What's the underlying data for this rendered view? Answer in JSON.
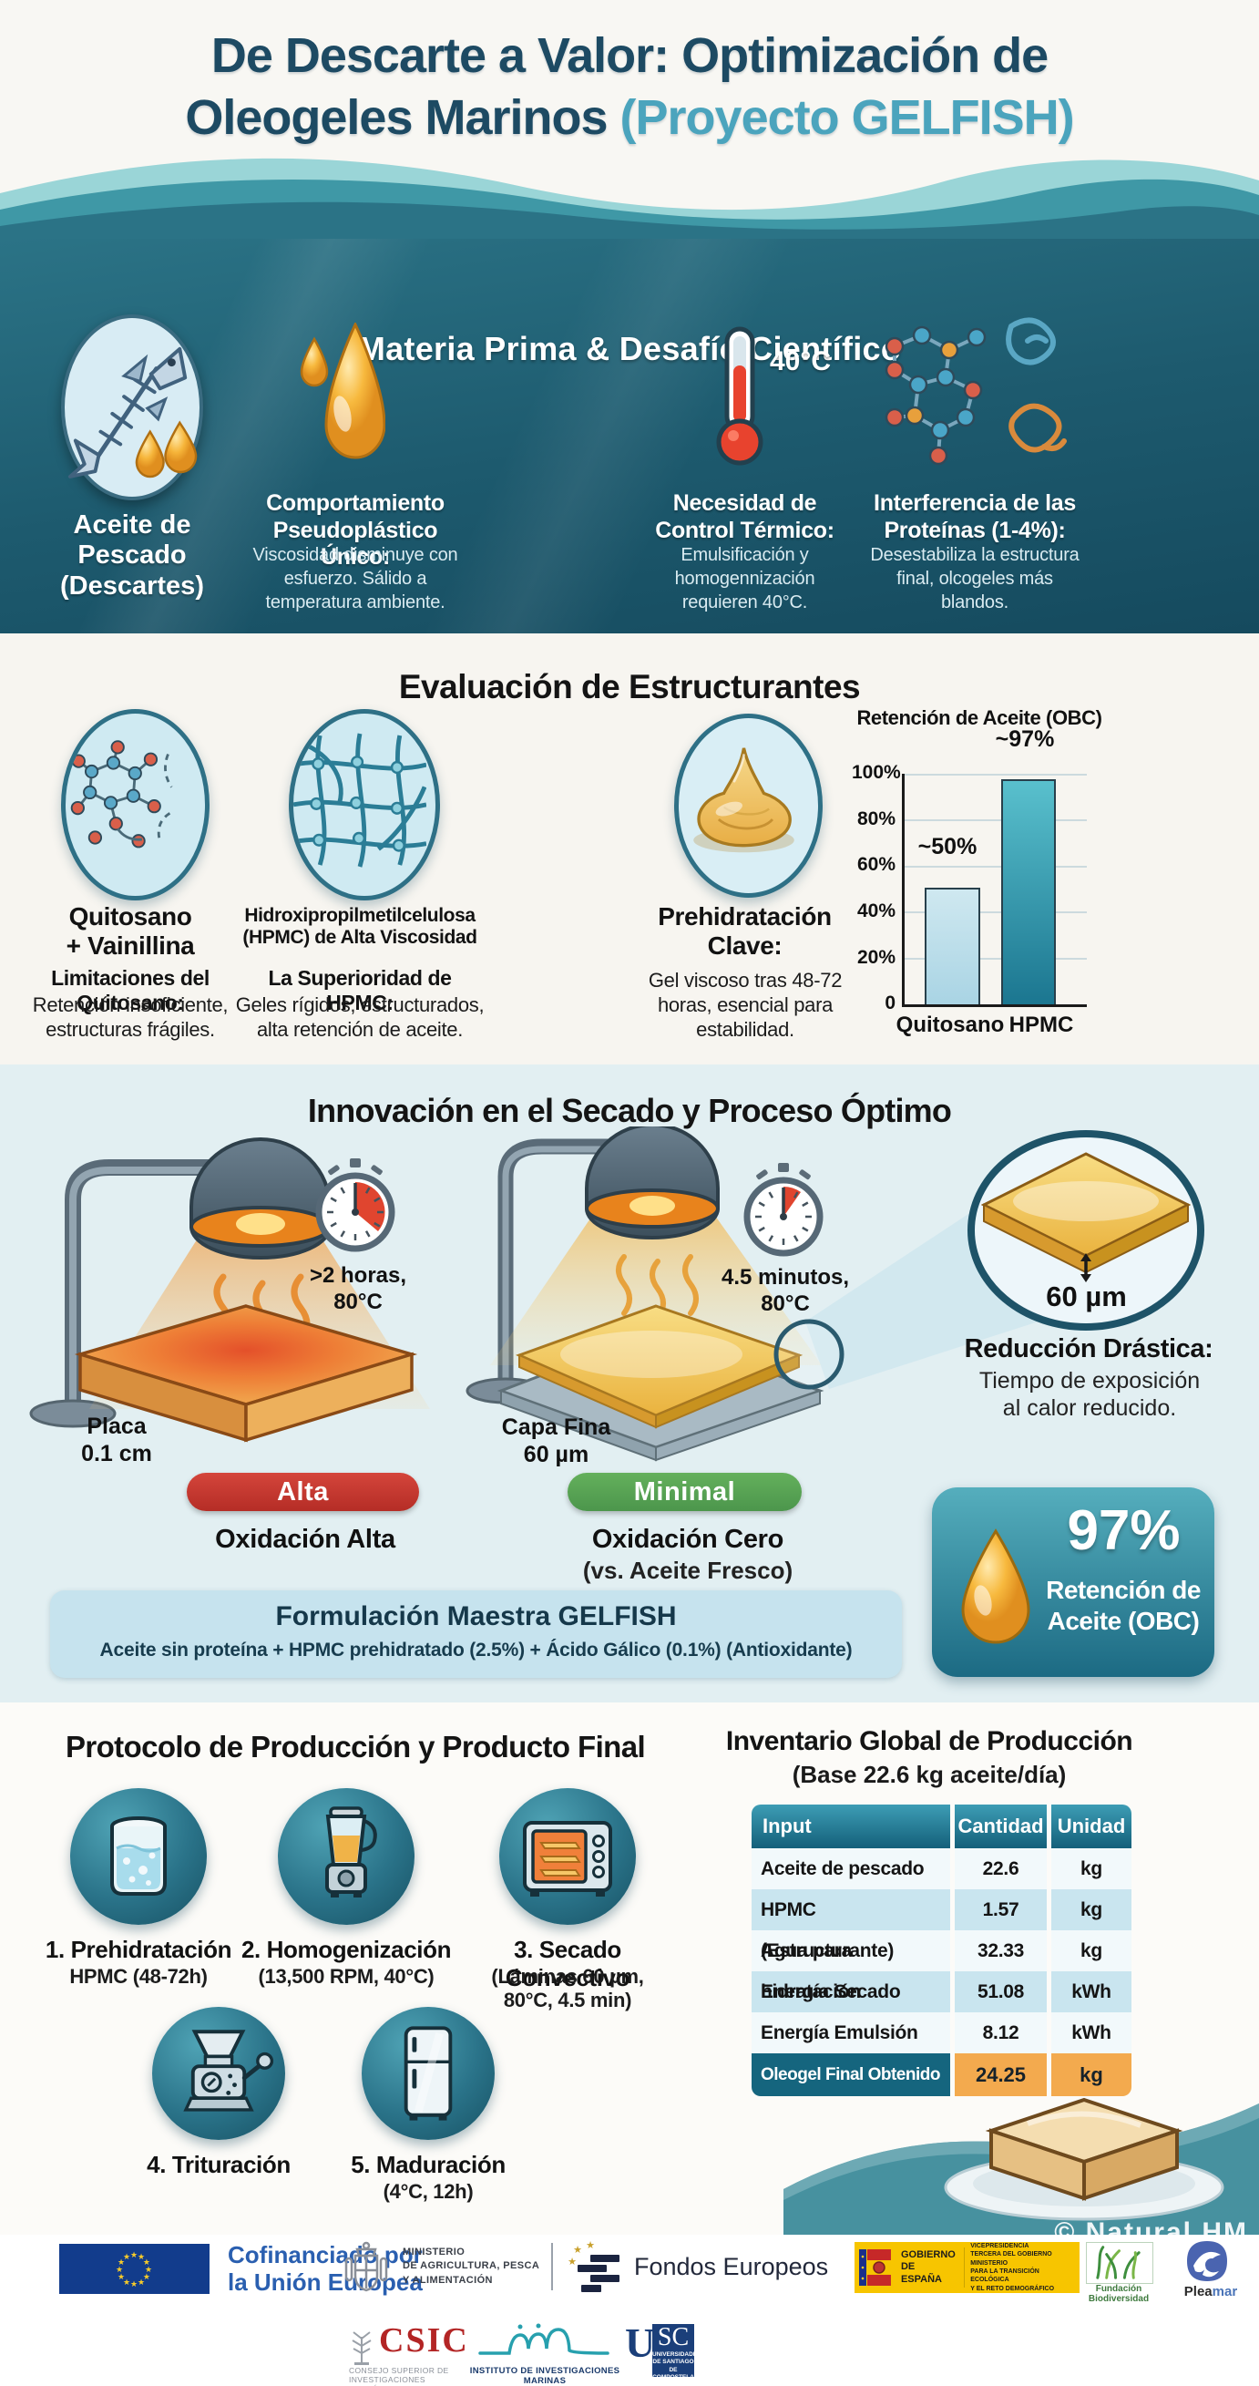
{
  "header": {
    "title_main_1": "De Descarte a Valor: Optimización de",
    "title_main_2": "Oleogeles Marinos ",
    "title_accent": "(Proyecto GELFISH)",
    "title_color": "#1d4a63",
    "accent_color": "#4ba4bd"
  },
  "materia": {
    "title": "Materia Prima & Desafío Científico",
    "items": [
      {
        "icon": "fish-skeleton-icon",
        "label": "Aceite de Pescado\n(Descartes)"
      },
      {
        "icon": "oil-drop-icon",
        "heading": "Comportamiento\nPseudoplástico Único:",
        "body": "Viscosidad disminuye con\nesfuerzo. Sálido a\ntemperatura ambiente."
      },
      {
        "icon": "thermometer-icon",
        "temp": "40°C",
        "heading": "Necesidad de\nControl Térmico:",
        "body": "Emulsificación y\nhomogennización\nrequieren 40°C."
      },
      {
        "icon": "protein-molecules-icon",
        "heading": "Interferencia de las\nProteínas (1-4%):",
        "body": "Desestabiliza la estructura\nfinal, olcogeles más\nblandos."
      }
    ]
  },
  "evaluacion": {
    "title": "Evaluación de Estructurantes",
    "items": [
      {
        "icon": "chitosan-molecule-icon",
        "name": "Quitosano\n+ Vainillina",
        "subheading": "Limitaciones del Quitosano:",
        "body": "Retención insoficiente,\nestructuras frágiles."
      },
      {
        "icon": "hpmc-network-icon",
        "name": "Hidroxipropilmetilcelulosa\n(HPMC) de Alta Viscosidad",
        "subheading": "La Superioridad de HPMC:",
        "body": "Geles rígidos, estructurados,\nalta retención de aceite."
      },
      {
        "icon": "gel-dollop-icon",
        "name": "Prehidratación\nClave:",
        "body": "Gel viscoso tras 48-72\nhoras, esencial para\nestabilidad."
      }
    ]
  },
  "chart_data": {
    "type": "bar",
    "title": "Retención de Aceite (OBC)",
    "categories": [
      "Quitosano",
      "HPMC"
    ],
    "values": [
      50,
      97
    ],
    "value_labels": [
      "~50%",
      "~97%"
    ],
    "y_ticks": [
      "100%",
      "80%",
      "60%",
      "40%",
      "20%",
      "0"
    ],
    "ylim": [
      0,
      100
    ],
    "grid": true,
    "legend": false,
    "bar_colors": [
      "#a9d4e4",
      "#1b7690"
    ]
  },
  "secado": {
    "title": "Innovación en el Secado y Proceso Óptimo",
    "old_method": {
      "timer": ">2 horas,\n80°C",
      "sample": "Placa\n0.1 cm",
      "badge": "Alta",
      "badge_color": "#c9362e",
      "result": "Oxidación Alta"
    },
    "new_method": {
      "timer": "4.5 minutos,\n80°C",
      "sample": "Capa Fina\n60 µm",
      "badge": "Minimal",
      "badge_color": "#55a355",
      "result": "Oxidación Cero",
      "result_note": "(vs. Aceite Fresco)"
    },
    "detail": {
      "thickness": "60 µm",
      "heading": "Reducción Drástica:",
      "body": "Tiempo de exposición\nal calor reducido."
    },
    "formula": {
      "title": "Formulación Maestra GELFISH",
      "body": "Aceite sin proteína + HPMC prehidratado (2.5%) + Ácido Gálico (0.1%) (Antioxidante)"
    },
    "obc_badge": {
      "value": "97%",
      "label": "Retención de\nAceite (OBC)"
    }
  },
  "protocolo": {
    "title": "Protocolo de Producción y Producto Final",
    "steps": [
      {
        "icon": "beaker-icon",
        "label": "1. Prehidratación",
        "detail": "HPMC (48-72h)"
      },
      {
        "icon": "blender-icon",
        "label": "2. Homogenización",
        "detail": "(13,500 RPM, 40°C)"
      },
      {
        "icon": "oven-icon",
        "label": "3. Secado Convectivo",
        "detail": "(Láminas 60 µm,\n80°C, 4.5 min)"
      },
      {
        "icon": "grinder-icon",
        "label": "4. Trituración",
        "detail": ""
      },
      {
        "icon": "fridge-icon",
        "label": "5. Maduración",
        "detail": "(4°C, 12h)"
      }
    ]
  },
  "inventario": {
    "title": "Inventario Global de Producción",
    "subtitle": "(Base 22.6 kg aceite/día)",
    "columns": [
      "Input",
      "Cantidad",
      "Unidad"
    ],
    "rows": [
      [
        "Aceite de pescado",
        "22.6",
        "kg"
      ],
      [
        "HPMC (Estructurante)",
        "1.57",
        "kg"
      ],
      [
        "Agua para hidratación",
        "32.33",
        "kg"
      ],
      [
        "Energía Secado",
        "51.08",
        "kWh"
      ],
      [
        "Energía Emulsión",
        "8.12",
        "kWh"
      ]
    ],
    "total_row": [
      "Oleogel Final Obtenido",
      "24.25",
      "kg"
    ],
    "header_bg_top": "#3d9db5",
    "header_bg_bottom": "#14607a",
    "total_label_bg": "#15657e",
    "total_value_bg": "#f3aa4e",
    "watermark": "© Natural HM"
  },
  "footer": {
    "eu_label": "Cofinanciado por\nla Unión Europea",
    "ministerio_agricultura": "MINISTERIO\nDE AGRICULTURA, PESCA\nY ALIMENTACIÓN",
    "fondos_europeos": "Fondos Europeos",
    "gobierno": {
      "name": "GOBIERNO\nDE ESPAÑA",
      "dept": "VICEPRESIDENCIA\nTERCERA DEL GOBIERNO\nMINISTERIO\nPARA LA TRANSICIÓN ECOLÓGICA\nY EL RETO DEMOGRÁFICO"
    },
    "biodiversidad": "Fundación Biodiversidad",
    "pleamar": {
      "part1": "Plea",
      "part2": "mar"
    },
    "csic": {
      "name": "CSIC",
      "caption": "CONSEJO SUPERIOR DE INVESTIGACIONES CIENTÍFICAS"
    },
    "iim_caption": "INSTITUTO DE INVESTIGACIONES MARINAS",
    "usc": {
      "letter": "U",
      "box": "SC",
      "caption": "UNIVERSIDADE\nDE SANTIAGO\nDE COMPOSTELA"
    }
  }
}
